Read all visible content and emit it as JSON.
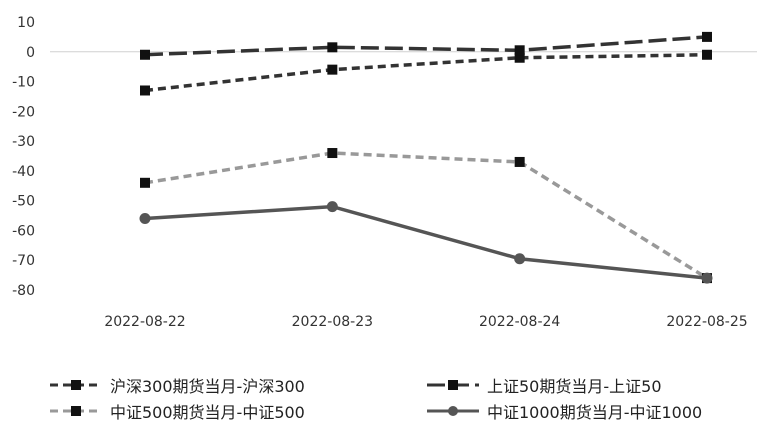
{
  "chart_data": {
    "type": "line",
    "categories": [
      "2022-08-22",
      "2022-08-23",
      "2022-08-24",
      "2022-08-25"
    ],
    "ylim": [
      -80,
      10
    ],
    "yticks": [
      10,
      0,
      -10,
      -20,
      -30,
      -40,
      -50,
      -60,
      -70,
      -80
    ],
    "grid": false,
    "legend_position": "bottom",
    "series": [
      {
        "name": "沪深300期货当月-沪深300",
        "values": [
          -13,
          -6,
          -2,
          -1
        ],
        "color": "#333333",
        "dash": "dash",
        "marker": "square"
      },
      {
        "name": "上证50期货当月-上证50",
        "values": [
          -1,
          1.5,
          0.5,
          5
        ],
        "color": "#333333",
        "dash": "longdash",
        "marker": "square"
      },
      {
        "name": "中证500期货当月-中证500",
        "values": [
          -44,
          -34,
          -37,
          -76
        ],
        "color": "#999999",
        "dash": "dash",
        "marker": "square"
      },
      {
        "name": "中证1000期货当月-中证1000",
        "values": [
          -56,
          -52,
          -69.5,
          -76
        ],
        "color": "#555555",
        "dash": "solid",
        "marker": "circle"
      }
    ]
  }
}
